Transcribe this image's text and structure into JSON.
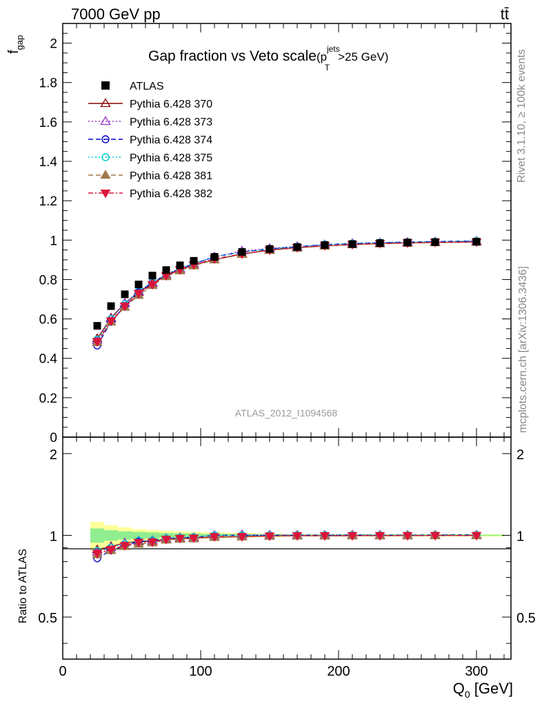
{
  "header": {
    "left": "7000 GeV pp",
    "right": "tt̄"
  },
  "side_labels": {
    "rivet": "Rivet 3.1.10, ≥ 100k events",
    "mcplots": "mcplots.cern.ch [arXiv:1306.3436]"
  },
  "main": {
    "title_main": "Gap fraction vs Veto scale",
    "title_cut": "(p",
    "title_cut_sup": "jets",
    "title_cut_sub": "T",
    "title_cut_tail": ">25 GeV)",
    "ylabel": "f",
    "ylabel_sub": "gap",
    "watermark": "ATLAS_2012_I1094568",
    "yticks": [
      "0",
      "0.2",
      "0.4",
      "0.6",
      "0.8",
      "1",
      "1.2",
      "1.4",
      "1.6",
      "1.8",
      "2"
    ]
  },
  "ratio": {
    "ylabel": "Ratio to ATLAS",
    "yticks_left": [
      "0.5",
      "1",
      "2"
    ],
    "yticks_right": [
      "0.5",
      "1",
      "2"
    ]
  },
  "xaxis": {
    "label": "Q",
    "label_sub": "0",
    "label_tail": " [GeV]",
    "ticks": [
      "0",
      "100",
      "200",
      "300"
    ]
  },
  "chart_data": {
    "type": "line",
    "x": [
      25,
      35,
      45,
      55,
      65,
      75,
      85,
      95,
      110,
      130,
      150,
      170,
      190,
      210,
      230,
      250,
      270,
      300
    ],
    "xlim": [
      0,
      325
    ],
    "ylim": [
      0,
      2.1
    ],
    "ratio_ylim": [
      0.35,
      2.3
    ],
    "ratio_band": [
      {
        "x0": 20,
        "x1": 30,
        "yellow": [
          0.88,
          1.12
        ],
        "green": [
          0.94,
          1.06
        ]
      },
      {
        "x0": 30,
        "x1": 40,
        "yellow": [
          0.91,
          1.09
        ],
        "green": [
          0.955,
          1.045
        ]
      },
      {
        "x0": 40,
        "x1": 50,
        "yellow": [
          0.93,
          1.07
        ],
        "green": [
          0.965,
          1.035
        ]
      },
      {
        "x0": 50,
        "x1": 60,
        "yellow": [
          0.945,
          1.055
        ],
        "green": [
          0.97,
          1.03
        ]
      },
      {
        "x0": 60,
        "x1": 70,
        "yellow": [
          0.955,
          1.045
        ],
        "green": [
          0.975,
          1.025
        ]
      },
      {
        "x0": 70,
        "x1": 80,
        "yellow": [
          0.96,
          1.04
        ],
        "green": [
          0.98,
          1.02
        ]
      },
      {
        "x0": 80,
        "x1": 90,
        "yellow": [
          0.965,
          1.035
        ],
        "green": [
          0.982,
          1.018
        ]
      },
      {
        "x0": 90,
        "x1": 100,
        "yellow": [
          0.97,
          1.03
        ],
        "green": [
          0.985,
          1.015
        ]
      },
      {
        "x0": 100,
        "x1": 120,
        "yellow": [
          0.975,
          1.025
        ],
        "green": [
          0.988,
          1.012
        ]
      },
      {
        "x0": 120,
        "x1": 140,
        "yellow": [
          0.98,
          1.02
        ],
        "green": [
          0.99,
          1.01
        ]
      },
      {
        "x0": 140,
        "x1": 160,
        "yellow": [
          0.985,
          1.015
        ],
        "green": [
          0.992,
          1.008
        ]
      },
      {
        "x0": 160,
        "x1": 320,
        "yellow": [
          0.99,
          1.01
        ],
        "green": [
          0.995,
          1.005
        ]
      }
    ],
    "series": [
      {
        "name": "ATLAS",
        "color": "#000000",
        "marker": "square",
        "dash": "none",
        "values": [
          0.565,
          0.665,
          0.725,
          0.775,
          0.82,
          0.848,
          0.872,
          0.895,
          0.915,
          0.94,
          0.955,
          0.965,
          0.975,
          0.98,
          0.985,
          0.988,
          0.99,
          0.992
        ]
      },
      {
        "name": "Pythia 6.428 370",
        "color": "#8b0000",
        "marker": "triangle-open",
        "dash": "solid",
        "values": [
          0.5,
          0.605,
          0.68,
          0.735,
          0.78,
          0.82,
          0.848,
          0.875,
          0.9,
          0.93,
          0.95,
          0.962,
          0.97,
          0.977,
          0.982,
          0.985,
          0.988,
          0.99
        ]
      },
      {
        "name": "Pythia 6.428 373",
        "color": "#9932cc",
        "marker": "triangle-open",
        "dash": "dotted",
        "values": [
          0.49,
          0.6,
          0.68,
          0.74,
          0.785,
          0.825,
          0.855,
          0.88,
          0.915,
          0.945,
          0.958,
          0.968,
          0.977,
          0.983,
          0.987,
          0.99,
          0.992,
          0.995
        ]
      },
      {
        "name": "Pythia 6.428 374",
        "color": "#0000cd",
        "marker": "circle-open",
        "dash": "dashed",
        "values": [
          0.465,
          0.585,
          0.665,
          0.735,
          0.785,
          0.825,
          0.855,
          0.88,
          0.915,
          0.94,
          0.955,
          0.967,
          0.977,
          0.983,
          0.987,
          0.99,
          0.993,
          0.996
        ]
      },
      {
        "name": "Pythia 6.428 375",
        "color": "#00ced1",
        "marker": "circle-open",
        "dash": "dotted",
        "values": [
          0.495,
          0.6,
          0.675,
          0.74,
          0.785,
          0.825,
          0.855,
          0.882,
          0.915,
          0.94,
          0.955,
          0.967,
          0.977,
          0.983,
          0.987,
          0.99,
          0.993,
          0.996
        ]
      },
      {
        "name": "Pythia 6.428 381",
        "color": "#a0784b",
        "marker": "triangle-filled",
        "dash": "dashed",
        "values": [
          0.48,
          0.585,
          0.66,
          0.72,
          0.77,
          0.815,
          0.845,
          0.87,
          0.9,
          0.928,
          0.948,
          0.96,
          0.97,
          0.977,
          0.982,
          0.985,
          0.988,
          0.99
        ]
      },
      {
        "name": "Pythia 6.428 382",
        "color": "#dc143c",
        "marker": "triangle-down-filled",
        "dash": "dashdot",
        "values": [
          0.485,
          0.59,
          0.665,
          0.73,
          0.775,
          0.82,
          0.85,
          0.875,
          0.905,
          0.93,
          0.95,
          0.962,
          0.972,
          0.978,
          0.983,
          0.986,
          0.989,
          0.991
        ]
      }
    ]
  }
}
